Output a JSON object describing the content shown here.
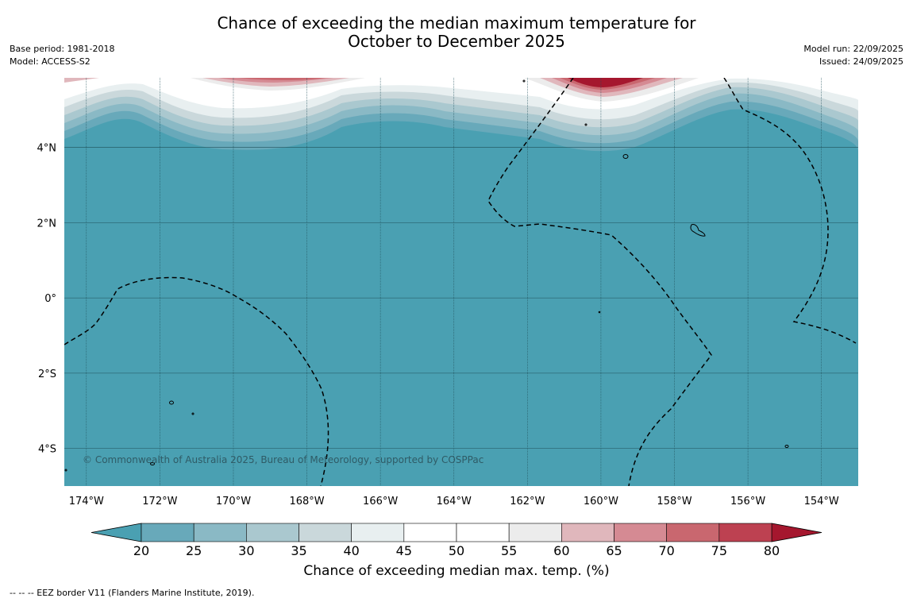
{
  "title": {
    "line1": "Chance of exceeding the median maximum temperature for",
    "line2": "October to December 2025"
  },
  "meta_left": {
    "base_period": "Base period: 1981-2018",
    "model": "Model: ACCESS-S2"
  },
  "meta_right": {
    "model_run": "Model run: 22/09/2025",
    "issued": "Issued: 24/09/2025"
  },
  "map": {
    "lon_labels": [
      "174°W",
      "172°W",
      "170°W",
      "168°W",
      "166°W",
      "164°W",
      "162°W",
      "160°W",
      "158°W",
      "156°W",
      "154°W"
    ],
    "lat_labels": [
      "4°N",
      "2°N",
      "0°",
      "2°S",
      "4°S"
    ],
    "lon_range": [
      -174.6,
      -153.0
    ],
    "lat_range": [
      -5.0,
      5.85
    ],
    "copyright": "© Commonwealth of Australia 2025, Bureau of Meteorology, supported by COSPPac"
  },
  "colorbar": {
    "labels": [
      "20",
      "25",
      "30",
      "35",
      "40",
      "45",
      "50",
      "55",
      "60",
      "65",
      "70",
      "75",
      "80"
    ],
    "colors": [
      "#4aa0b2",
      "#68a9ba",
      "#8ab9c5",
      "#aac8cf",
      "#cad8db",
      "#e8eff0",
      "#ffffff",
      "#ffffff",
      "#ececec",
      "#e0b7bc",
      "#d58a93",
      "#c9676f",
      "#bd4151",
      "#a5172e"
    ],
    "title": "Chance of exceeding median max. temp. (%)"
  },
  "footnote": "-- -- -- EEZ border V11 (Flanders Marine Institute, 2019)."
}
